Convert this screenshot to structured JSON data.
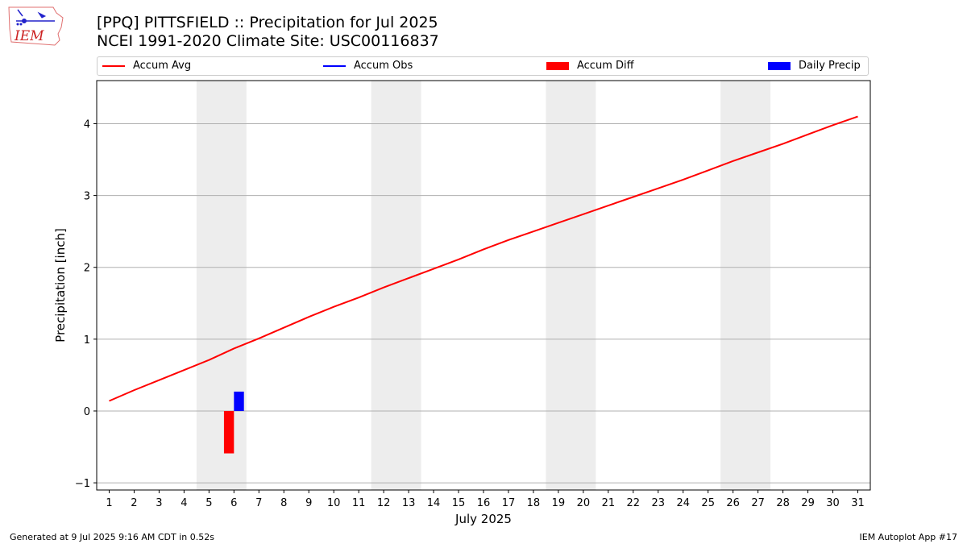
{
  "logo_text": "IEM",
  "title_line1": "[PPQ] PITTSFIELD :: Precipitation for Jul 2025",
  "title_line2": "NCEI 1991-2020 Climate Site: USC00116837",
  "legend": [
    {
      "label": "Accum Avg",
      "kind": "line",
      "color": "#ff0000"
    },
    {
      "label": "Accum Obs",
      "kind": "line",
      "color": "#0000ff"
    },
    {
      "label": "Accum Diff",
      "kind": "patch",
      "color": "#ff0000"
    },
    {
      "label": "Daily Precip",
      "kind": "patch",
      "color": "#0000ff"
    }
  ],
  "footer_left": "Generated at 9 Jul 2025 9:16 AM CDT in 0.52s",
  "footer_right": "IEM Autoplot App #17",
  "chart_data": {
    "type": "line",
    "title": "[PPQ] PITTSFIELD :: Precipitation for Jul 2025",
    "xlabel": "July 2025",
    "ylabel": "Precipitation [inch]",
    "xlim": [
      0.5,
      31.5
    ],
    "ylim": [
      -1.1,
      4.6
    ],
    "yticks": [
      -1,
      0,
      1,
      2,
      3,
      4
    ],
    "ytick_labels": [
      "−1",
      "0",
      "1",
      "2",
      "3",
      "4"
    ],
    "x": [
      1,
      2,
      3,
      4,
      5,
      6,
      7,
      8,
      9,
      10,
      11,
      12,
      13,
      14,
      15,
      16,
      17,
      18,
      19,
      20,
      21,
      22,
      23,
      24,
      25,
      26,
      27,
      28,
      29,
      30,
      31
    ],
    "grid": true,
    "weekend_shading": [
      [
        4.5,
        6.5
      ],
      [
        11.5,
        13.5
      ],
      [
        18.5,
        20.5
      ],
      [
        25.5,
        27.5
      ]
    ],
    "series": [
      {
        "name": "Accum Avg",
        "type": "line",
        "color": "#ff0000",
        "values": [
          0.14,
          0.29,
          0.43,
          0.57,
          0.71,
          0.87,
          1.01,
          1.16,
          1.31,
          1.45,
          1.58,
          1.72,
          1.85,
          1.98,
          2.11,
          2.25,
          2.38,
          2.5,
          2.62,
          2.74,
          2.86,
          2.98,
          3.1,
          3.22,
          3.35,
          3.48,
          3.6,
          3.72,
          3.85,
          3.98,
          4.1
        ]
      },
      {
        "name": "Accum Diff",
        "type": "bar",
        "color": "#ff0000",
        "offset": -0.2,
        "points": [
          {
            "x": 6,
            "value": -0.59
          }
        ]
      },
      {
        "name": "Daily Precip",
        "type": "bar",
        "color": "#0000ff",
        "offset": 0.2,
        "points": [
          {
            "x": 6,
            "value": 0.27
          }
        ]
      }
    ]
  }
}
